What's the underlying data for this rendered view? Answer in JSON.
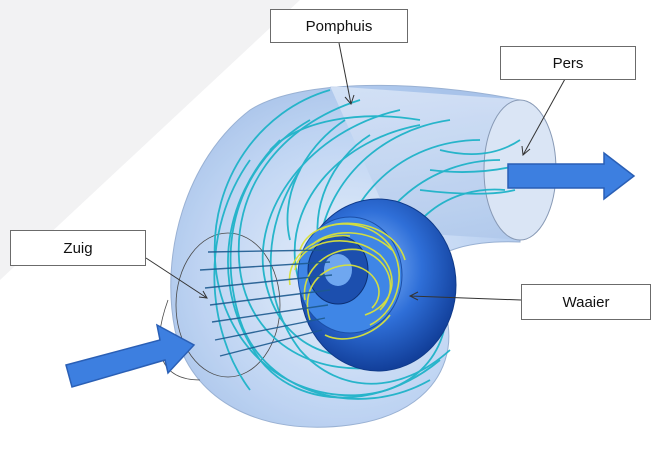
{
  "labels": {
    "pomphuis": "Pomphuis",
    "pers": "Pers",
    "zuig": "Zuig",
    "waaier": "Waaier"
  },
  "colors": {
    "housing": "#a9c6ee",
    "impeller": "#2f6fd8",
    "streamline_cyan": "#1fb3c8",
    "streamline_yellow": "#d9e23a",
    "arrow": "#3d7fe0",
    "arrow_outline": "#2a5fb5"
  }
}
